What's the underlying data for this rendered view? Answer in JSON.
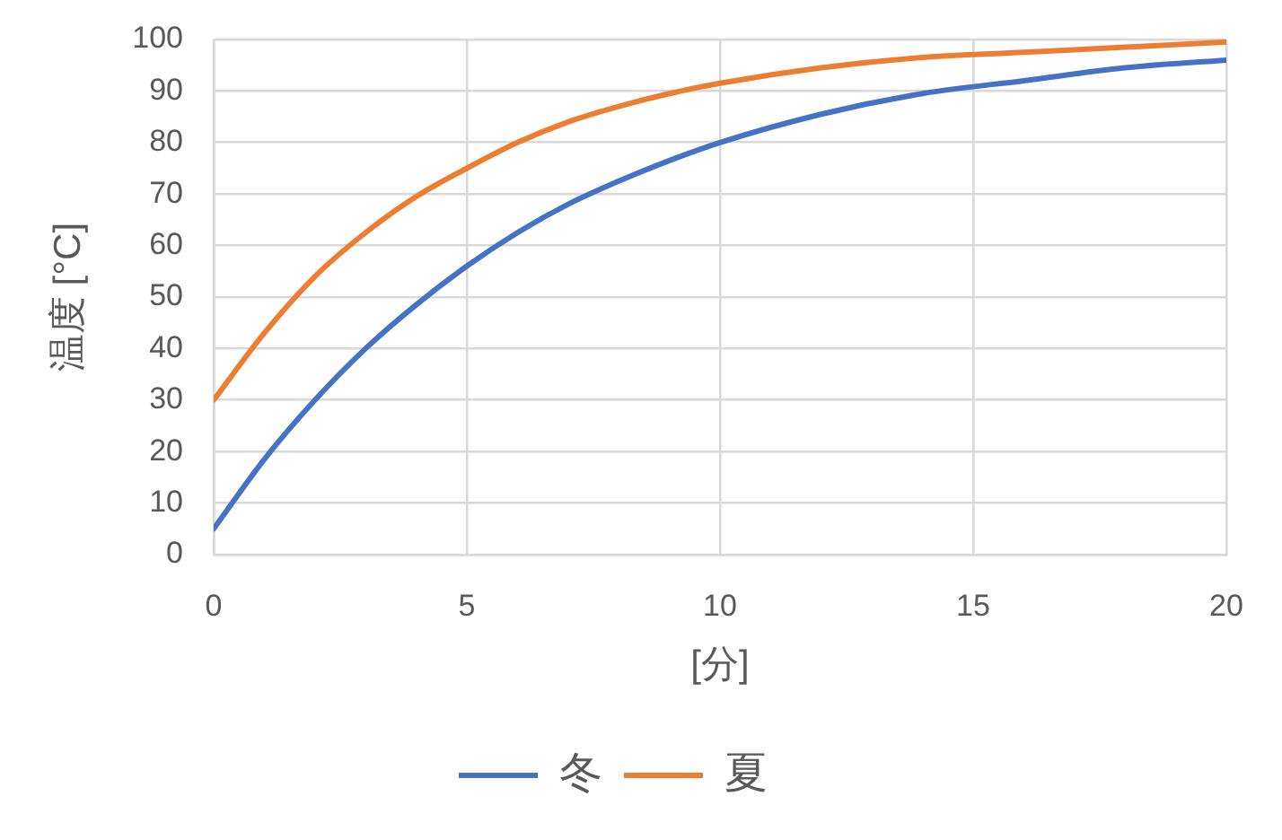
{
  "chart_data": {
    "type": "line",
    "xlabel": "[分]",
    "ylabel": "温度 [°C]",
    "x": [
      0,
      1,
      2,
      3,
      4,
      5,
      6,
      7,
      8,
      9,
      10,
      12,
      14,
      16,
      18,
      20
    ],
    "xlim": [
      0,
      20
    ],
    "xticks": [
      0,
      5,
      10,
      15,
      20
    ],
    "ylim": [
      0,
      100
    ],
    "yticks": [
      0,
      10,
      20,
      30,
      40,
      50,
      60,
      70,
      80,
      90,
      100
    ],
    "grid": true,
    "legend": "bottom",
    "marker": "none",
    "line_style": "solid",
    "series": [
      {
        "name": "冬",
        "color": "#4472c4",
        "values": [
          5,
          18.5,
          30,
          40,
          48.5,
          56,
          62.5,
          68,
          72.5,
          76.5,
          80,
          85.5,
          89.5,
          92,
          94.5,
          96
        ]
      },
      {
        "name": "夏",
        "color": "#ed7d31",
        "values": [
          30,
          43,
          54,
          62.5,
          69.5,
          75,
          80,
          84,
          87,
          89.5,
          91.5,
          94.5,
          96.5,
          97.5,
          98.5,
          99.5
        ]
      }
    ]
  }
}
